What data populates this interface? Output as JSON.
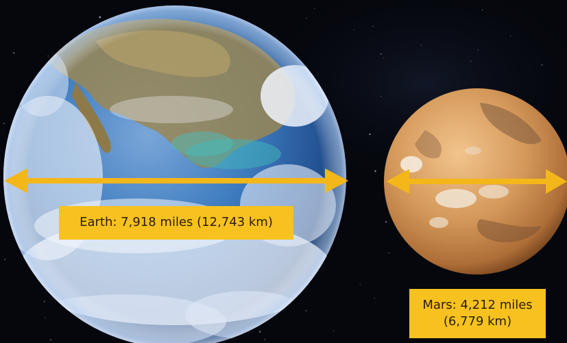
{
  "earth": {
    "label": "Earth: 7,918 miles (12,743 km)"
  },
  "mars": {
    "label_line1": "Mars: 4,212 miles",
    "label_line2": "(6,779 km)"
  },
  "colors": {
    "space": "#05070d",
    "arrow": "#f4b719",
    "label_bg": "#f7c21f",
    "label_text": "#2a1d05",
    "earth_ocean": "#2f6fb4",
    "earth_cloud": "#eef3fb",
    "earth_land": "#8a7a4a",
    "mars_surface": "#d49a5c"
  }
}
